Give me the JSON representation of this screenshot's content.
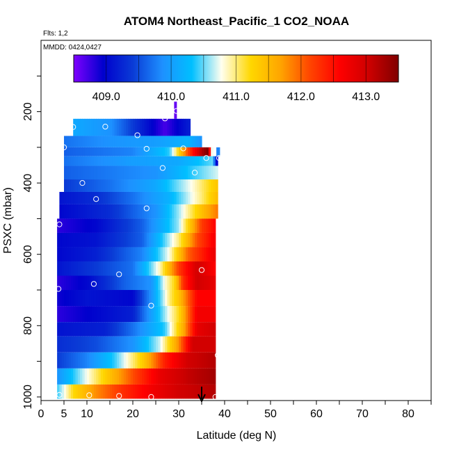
{
  "chart_data": {
    "type": "heatmap",
    "title": "ATOM4 Northeast_Pacific_1 CO2_NOAA",
    "flights_label": "Flts: 1,2",
    "dates_label": "MMDD: 0424,0427",
    "xlabel": "Latitude (deg N)",
    "ylabel": "PSXC (mbar)",
    "xlim": [
      0,
      85
    ],
    "ylim": [
      1010,
      0
    ],
    "x_ticks": [
      0,
      5,
      10,
      20,
      30,
      40,
      50,
      60,
      70,
      80
    ],
    "y_ticks": [
      200,
      400,
      600,
      800,
      1000
    ],
    "colorbar": {
      "range": [
        408.5,
        413.5
      ],
      "tick_values": [
        409.0,
        410.0,
        411.0,
        412.0,
        413.0
      ],
      "tick_labels": [
        "409.0",
        "410.0",
        "411.0",
        "412.0",
        "413.0"
      ],
      "colors": [
        "#7f00ff",
        "#0000cd",
        "#0a3bd6",
        "#1e90ff",
        "#00bfff",
        "#fffff0",
        "#ffd700",
        "#ffa500",
        "#ff4500",
        "#ff0000",
        "#cd0000",
        "#800000"
      ]
    },
    "bands": [
      {
        "p_top": 220,
        "p_bot": 268,
        "x_start": 7,
        "x_end": 32.5,
        "values": [
          [
            7,
            410.1
          ],
          [
            15,
            409.9
          ],
          [
            22,
            409.2
          ],
          [
            27,
            408.7
          ],
          [
            29,
            408.9
          ],
          [
            32.5,
            409.2
          ]
        ]
      },
      {
        "p_top": 268,
        "p_bot": 300,
        "x_start": 5,
        "x_end": 35,
        "values": [
          [
            5,
            409.7
          ],
          [
            15,
            409.9
          ],
          [
            25,
            410.0
          ],
          [
            32,
            410.2
          ],
          [
            35,
            409.9
          ]
        ]
      },
      {
        "p_top": 300,
        "p_bot": 325,
        "x_start": 5,
        "x_end": 37.5,
        "values": [
          [
            5,
            409.6
          ],
          [
            20,
            409.8
          ],
          [
            28,
            410.4
          ],
          [
            32,
            412.1
          ],
          [
            35,
            413.2
          ],
          [
            36.5,
            413.6
          ],
          [
            37.2,
            411.0
          ],
          [
            37.5,
            409.5
          ]
        ]
      },
      {
        "p_top": 325,
        "p_bot": 352,
        "x_start": 5,
        "x_end": 38.5,
        "values": [
          [
            5,
            409.7
          ],
          [
            20,
            410.0
          ],
          [
            30,
            410.1
          ],
          [
            34,
            410.3
          ],
          [
            37.5,
            410.5
          ],
          [
            38,
            409.0
          ]
        ]
      },
      {
        "p_top": 352,
        "p_bot": 390,
        "x_start": 5,
        "x_end": 38.5,
        "values": [
          [
            5,
            409.6
          ],
          [
            25,
            409.9
          ],
          [
            33,
            410.4
          ],
          [
            38.5,
            410.7
          ]
        ]
      },
      {
        "p_top": 390,
        "p_bot": 425,
        "x_start": 5,
        "x_end": 38.5,
        "values": [
          [
            5,
            409.4
          ],
          [
            15,
            409.7
          ],
          [
            25,
            410.1
          ],
          [
            33,
            410.8
          ],
          [
            38.5,
            411.4
          ]
        ]
      },
      {
        "p_top": 425,
        "p_bot": 460,
        "x_start": 4,
        "x_end": 38.5,
        "values": [
          [
            4,
            409.1
          ],
          [
            12,
            409.3
          ],
          [
            20,
            409.7
          ],
          [
            28,
            410.2
          ],
          [
            35,
            411.0
          ],
          [
            38.5,
            411.5
          ]
        ]
      },
      {
        "p_top": 460,
        "p_bot": 500,
        "x_start": 4,
        "x_end": 38.5,
        "values": [
          [
            4,
            409.0
          ],
          [
            15,
            409.3
          ],
          [
            25,
            409.9
          ],
          [
            30,
            410.6
          ],
          [
            36,
            411.6
          ],
          [
            38.5,
            411.9
          ]
        ]
      },
      {
        "p_top": 500,
        "p_bot": 540,
        "x_start": 3.5,
        "x_end": 38,
        "values": [
          [
            3.5,
            408.8
          ],
          [
            12,
            409.0
          ],
          [
            22,
            409.6
          ],
          [
            30,
            410.6
          ],
          [
            35,
            412.2
          ],
          [
            38,
            412.6
          ]
        ]
      },
      {
        "p_top": 540,
        "p_bot": 580,
        "x_start": 3.5,
        "x_end": 38,
        "values": [
          [
            3.5,
            409.0
          ],
          [
            12,
            409.1
          ],
          [
            22,
            409.6
          ],
          [
            30,
            411.0
          ],
          [
            34,
            412.1
          ],
          [
            38,
            412.7
          ]
        ]
      },
      {
        "p_top": 580,
        "p_bot": 620,
        "x_start": 3.5,
        "x_end": 38,
        "values": [
          [
            3.5,
            409.0
          ],
          [
            12,
            409.2
          ],
          [
            22,
            409.8
          ],
          [
            28,
            410.8
          ],
          [
            32,
            412.0
          ],
          [
            38,
            412.8
          ]
        ]
      },
      {
        "p_top": 620,
        "p_bot": 660,
        "x_start": 3.5,
        "x_end": 38,
        "values": [
          [
            3.5,
            409.1
          ],
          [
            12,
            409.4
          ],
          [
            20,
            409.7
          ],
          [
            26,
            410.9
          ],
          [
            30,
            412.2
          ],
          [
            34,
            413.0
          ],
          [
            38,
            412.6
          ]
        ]
      },
      {
        "p_top": 660,
        "p_bot": 700,
        "x_start": 3.5,
        "x_end": 38,
        "values": [
          [
            3.5,
            408.8
          ],
          [
            10,
            409.0
          ],
          [
            18,
            409.6
          ],
          [
            24,
            409.9
          ],
          [
            27,
            410.8
          ],
          [
            29,
            411.2
          ],
          [
            31,
            412.3
          ],
          [
            34,
            413.0
          ],
          [
            38,
            412.8
          ]
        ]
      },
      {
        "p_top": 700,
        "p_bot": 745,
        "x_start": 3.5,
        "x_end": 38,
        "values": [
          [
            3.5,
            408.9
          ],
          [
            10,
            409.1
          ],
          [
            20,
            409.0
          ],
          [
            24,
            409.9
          ],
          [
            28,
            411.0
          ],
          [
            30,
            411.4
          ],
          [
            34,
            412.6
          ],
          [
            38,
            412.6
          ]
        ]
      },
      {
        "p_top": 745,
        "p_bot": 790,
        "x_start": 3.5,
        "x_end": 38,
        "values": [
          [
            3.5,
            408.8
          ],
          [
            12,
            409.0
          ],
          [
            20,
            409.2
          ],
          [
            26,
            410.4
          ],
          [
            30,
            411.2
          ],
          [
            34,
            412.7
          ],
          [
            38,
            412.7
          ]
        ]
      },
      {
        "p_top": 790,
        "p_bot": 830,
        "x_start": 3.5,
        "x_end": 38,
        "values": [
          [
            3.5,
            409.1
          ],
          [
            14,
            409.2
          ],
          [
            20,
            409.7
          ],
          [
            27,
            410.4
          ],
          [
            31,
            411.6
          ],
          [
            34,
            412.8
          ],
          [
            38,
            413.0
          ]
        ]
      },
      {
        "p_top": 830,
        "p_bot": 875,
        "x_start": 3.5,
        "x_end": 38,
        "values": [
          [
            3.5,
            409.3
          ],
          [
            12,
            409.5
          ],
          [
            20,
            409.9
          ],
          [
            26,
            410.7
          ],
          [
            30,
            411.8
          ],
          [
            33,
            413.0
          ],
          [
            38,
            413.0
          ]
        ]
      },
      {
        "p_top": 875,
        "p_bot": 920,
        "x_start": 3.5,
        "x_end": 38,
        "values": [
          [
            3.5,
            409.4
          ],
          [
            10,
            409.8
          ],
          [
            16,
            410.4
          ],
          [
            22,
            411.3
          ],
          [
            27,
            412.4
          ],
          [
            32,
            413.0
          ],
          [
            38,
            413.2
          ]
        ]
      },
      {
        "p_top": 920,
        "p_bot": 965,
        "x_start": 3.5,
        "x_end": 38,
        "values": [
          [
            3.5,
            409.9
          ],
          [
            8,
            410.5
          ],
          [
            14,
            411.3
          ],
          [
            20,
            412.1
          ],
          [
            26,
            412.8
          ],
          [
            32,
            413.1
          ],
          [
            38,
            413.3
          ]
        ]
      },
      {
        "p_top": 965,
        "p_bot": 1005,
        "x_start": 3.5,
        "x_end": 38,
        "values": [
          [
            3.5,
            410.4
          ],
          [
            7,
            411.2
          ],
          [
            12,
            411.8
          ],
          [
            18,
            412.3
          ],
          [
            24,
            412.7
          ],
          [
            30,
            413.0
          ],
          [
            38,
            413.2
          ]
        ]
      }
    ],
    "spikes": [
      {
        "x_start": 29,
        "x_end": 29.6,
        "p_top": 172,
        "p_bot": 220,
        "value": 408.6
      },
      {
        "x_start": 38.2,
        "x_end": 39,
        "p_top": 300,
        "p_bot": 325,
        "value": 409.8
      }
    ],
    "sample_points": [
      {
        "lat": 29.5,
        "p": 198
      },
      {
        "lat": 27.0,
        "p": 219
      },
      {
        "lat": 7.0,
        "p": 243
      },
      {
        "lat": 14.0,
        "p": 242
      },
      {
        "lat": 21.0,
        "p": 266
      },
      {
        "lat": 5.0,
        "p": 300
      },
      {
        "lat": 23.0,
        "p": 304
      },
      {
        "lat": 31.0,
        "p": 303
      },
      {
        "lat": 36.0,
        "p": 330
      },
      {
        "lat": 38.8,
        "p": 330
      },
      {
        "lat": 26.5,
        "p": 358
      },
      {
        "lat": 33.5,
        "p": 371
      },
      {
        "lat": 9.0,
        "p": 400
      },
      {
        "lat": 12.0,
        "p": 445
      },
      {
        "lat": 23.0,
        "p": 471
      },
      {
        "lat": 4.0,
        "p": 516
      },
      {
        "lat": 17.0,
        "p": 656
      },
      {
        "lat": 35.0,
        "p": 644
      },
      {
        "lat": 11.5,
        "p": 683
      },
      {
        "lat": 3.8,
        "p": 697
      },
      {
        "lat": 24.0,
        "p": 744
      },
      {
        "lat": 38.5,
        "p": 883
      },
      {
        "lat": 4.0,
        "p": 994
      },
      {
        "lat": 10.5,
        "p": 995
      },
      {
        "lat": 17.0,
        "p": 997
      },
      {
        "lat": 24.0,
        "p": 1000
      },
      {
        "lat": 38.0,
        "p": 1000
      }
    ],
    "arrow_lat": 35
  }
}
